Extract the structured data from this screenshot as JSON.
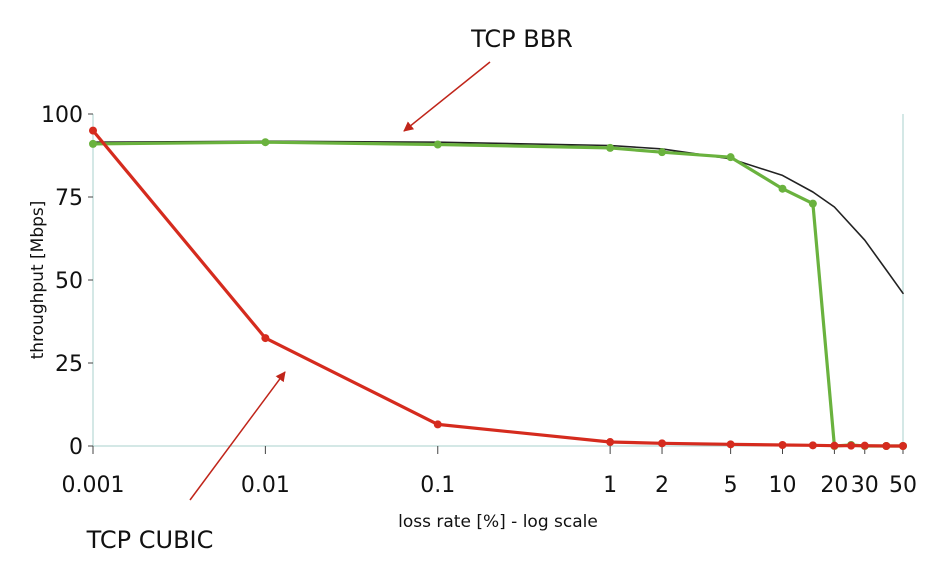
{
  "chart_data": {
    "type": "line",
    "xlabel": "loss rate [%] - log scale",
    "ylabel": "throughput [Mbps]",
    "xscale": "log",
    "xlim": [
      0.001,
      50
    ],
    "ylim": [
      0,
      100
    ],
    "x_ticks": [
      0.001,
      0.01,
      0.1,
      1,
      2,
      5,
      10,
      20,
      30,
      50
    ],
    "x_tick_labels": [
      "0.001",
      "0.01",
      "0.1",
      "1",
      "2",
      "5",
      "10",
      "20",
      "30",
      "50"
    ],
    "y_ticks": [
      0,
      25,
      50,
      75,
      100
    ],
    "y_tick_labels": [
      "0",
      "25",
      "50",
      "75",
      "100"
    ],
    "grid": false,
    "series": [
      {
        "color": "#222222",
        "points": [
          [
            0.001,
            91.5
          ],
          [
            0.01,
            91.8
          ],
          [
            0.1,
            91.5
          ],
          [
            1,
            90.5
          ],
          [
            2,
            89.5
          ],
          [
            5,
            86.5
          ],
          [
            10,
            81.5
          ],
          [
            15,
            76.5
          ],
          [
            20,
            72
          ],
          [
            30,
            62
          ],
          [
            40,
            53
          ],
          [
            50,
            46
          ]
        ]
      },
      {
        "name": "TCP BBR",
        "color": "#6ab23e",
        "points": [
          [
            0.001,
            91
          ],
          [
            0.01,
            91.5
          ],
          [
            0.1,
            90.8
          ],
          [
            1,
            89.8
          ],
          [
            2,
            88.5
          ],
          [
            5,
            87
          ],
          [
            10,
            77.5
          ],
          [
            15,
            73
          ],
          [
            20,
            0
          ],
          [
            25,
            0.3
          ],
          [
            30,
            0
          ],
          [
            40,
            0
          ],
          [
            50,
            0
          ]
        ]
      },
      {
        "name": "TCP CUBIC",
        "color": "#d52b1e",
        "points": [
          [
            0.001,
            95
          ],
          [
            0.01,
            32.5
          ],
          [
            0.1,
            6.5
          ],
          [
            1,
            1.2
          ],
          [
            2,
            0.8
          ],
          [
            5,
            0.5
          ],
          [
            10,
            0.3
          ],
          [
            15,
            0.2
          ],
          [
            20,
            0.1
          ],
          [
            25,
            0.1
          ],
          [
            30,
            0.1
          ],
          [
            40,
            0
          ],
          [
            50,
            0
          ]
        ]
      }
    ],
    "annotations": [
      {
        "text": "TCP BBR",
        "points_to": "TCP BBR"
      },
      {
        "text": "TCP CUBIC",
        "points_to": "TCP CUBIC"
      }
    ],
    "arrow_color": "#c0251a"
  }
}
